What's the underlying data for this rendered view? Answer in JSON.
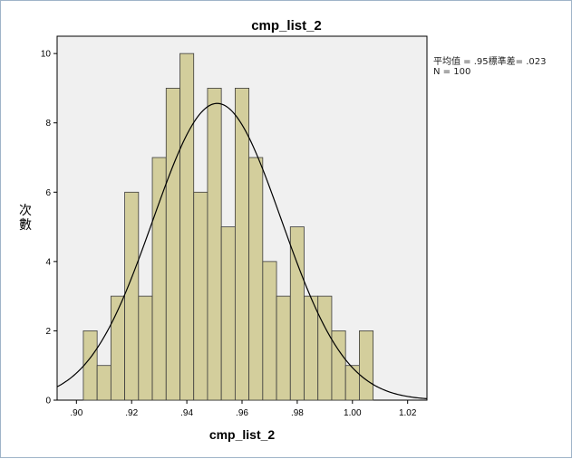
{
  "chart_data": {
    "type": "bar",
    "title": "cmp_list_2",
    "xlabel": "cmp_list_2",
    "ylabel": "次數",
    "bin_start": 0.9025,
    "bin_width": 0.005,
    "values": [
      2,
      1,
      3,
      6,
      3,
      7,
      9,
      10,
      6,
      9,
      5,
      9,
      7,
      4,
      3,
      5,
      3,
      3,
      2,
      1,
      2
    ],
    "xlim": [
      0.893,
      1.027
    ],
    "ylim": [
      0,
      10.5
    ],
    "x_ticks": [
      0.9,
      0.92,
      0.94,
      0.96,
      0.98,
      1.0,
      1.02
    ],
    "x_tick_labels": [
      ".90",
      ".92",
      ".94",
      ".96",
      ".98",
      "1.00",
      "1.02"
    ],
    "y_ticks": [
      0,
      2,
      4,
      6,
      8,
      10
    ],
    "y_tick_labels": [
      "0",
      "2",
      "4",
      "6",
      "8",
      "10"
    ],
    "normal_curve": {
      "mean": 0.951,
      "sd": 0.0233,
      "n": 100
    },
    "legend": {
      "position": "right",
      "line1": "平均值 = .95標準差= .023",
      "line2": "N = 100"
    },
    "colors": {
      "plot_background": "#f0f0f0",
      "bar_fill": "#d3ce9c",
      "bar_stroke": "#3c3c3c",
      "curve": "#000000"
    }
  }
}
